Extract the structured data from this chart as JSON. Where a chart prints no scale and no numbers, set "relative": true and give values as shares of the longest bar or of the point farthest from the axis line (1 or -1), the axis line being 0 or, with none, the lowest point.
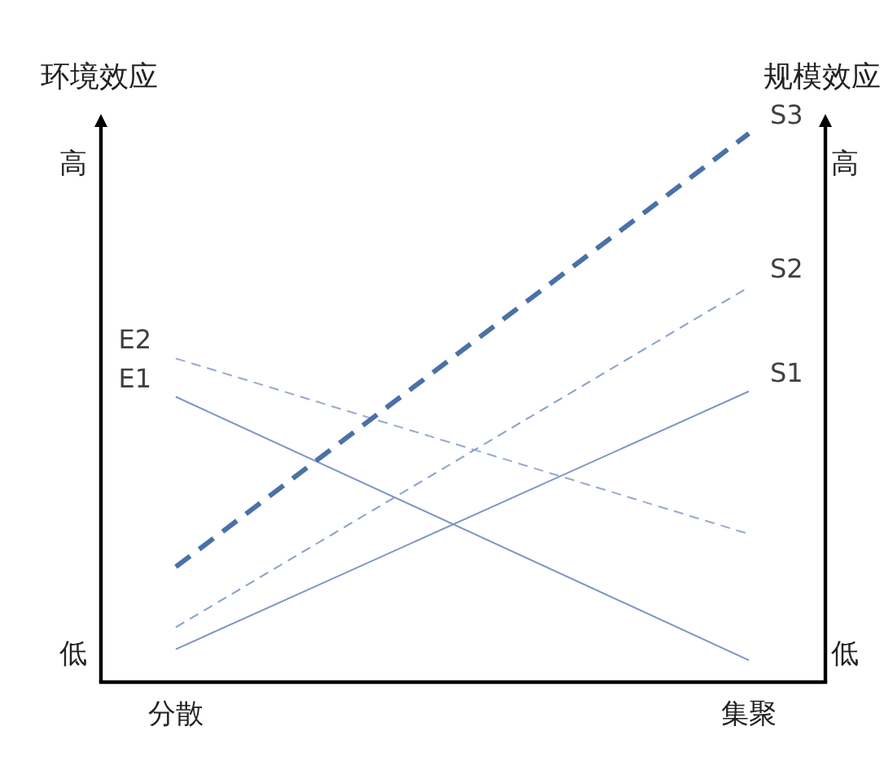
{
  "chart_data": {
    "type": "line",
    "relative": true,
    "ylabel": "环境效应",
    "y2label": "规模效应",
    "categories": [
      "分散",
      "集聚"
    ],
    "series": [
      {
        "name": "E1",
        "color": "#7d96c4",
        "line_style": "solid",
        "values": [
          0.52,
          0.04
        ]
      },
      {
        "name": "E2",
        "color": "#97a9cc",
        "line_style": "dashed",
        "values": [
          0.59,
          0.27
        ]
      },
      {
        "name": "S1",
        "color": "#7d96c4",
        "line_style": "solid",
        "values": [
          0.06,
          0.53
        ]
      },
      {
        "name": "S2",
        "color": "#8aa0c8",
        "line_style": "dashed",
        "values": [
          0.1,
          0.72
        ]
      },
      {
        "name": "S3",
        "color": "#4a71a8",
        "line_style": "dashed",
        "values": [
          0.21,
          1
        ]
      }
    ],
    "annotations": [
      "高",
      "低",
      "高",
      "低"
    ]
  }
}
